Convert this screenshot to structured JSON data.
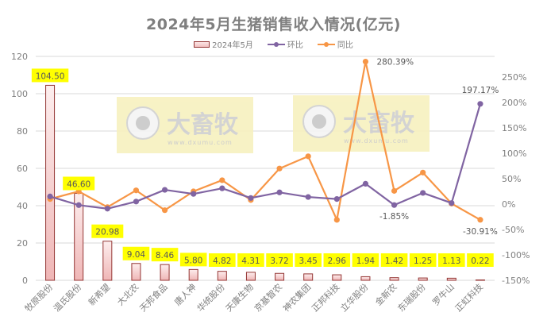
{
  "chart_data": {
    "type": "bar+line",
    "title": "2024年5月生猪销售收入情况(亿元)",
    "categories": [
      "牧原股份",
      "温氏股份",
      "新希望",
      "大北农",
      "天邦食品",
      "唐人神",
      "华统股份",
      "天康生物",
      "京基智农",
      "神农集团",
      "正邦科技",
      "立华股份",
      "金新农",
      "东瑞股份",
      "罗牛山",
      "正虹科技"
    ],
    "series": [
      {
        "name": "2024年5月",
        "type": "bar",
        "axis": "left",
        "values": [
          104.5,
          46.6,
          20.98,
          9.04,
          8.46,
          5.8,
          4.82,
          4.31,
          3.72,
          3.45,
          2.96,
          1.94,
          1.42,
          1.25,
          1.13,
          0.22
        ],
        "labels": [
          "104.50",
          "46.60",
          "20.98",
          "9.04",
          "8.46",
          "5.80",
          "4.82",
          "4.31",
          "3.72",
          "3.45",
          "2.96",
          "1.94",
          "1.42",
          "1.25",
          "1.13",
          "0.22"
        ]
      },
      {
        "name": "环比",
        "type": "line",
        "axis": "right",
        "unit": "%",
        "values": [
          15,
          -2,
          -9,
          5,
          28,
          20,
          31,
          12,
          23,
          14,
          10,
          40,
          -1.85,
          22,
          2,
          197.17
        ],
        "annotations": {
          "12": "-1.85%",
          "15": "197.17%"
        }
      },
      {
        "name": "同比",
        "type": "line",
        "axis": "right",
        "unit": "%",
        "values": [
          10,
          25,
          -6,
          27,
          -12,
          25,
          47,
          8,
          70,
          94,
          -31,
          280.39,
          26,
          62,
          1,
          -30.91
        ],
        "annotations": {
          "11": "280.39%",
          "15": "-30.91%"
        }
      }
    ],
    "left_axis": {
      "min": 0,
      "max": 120,
      "step": 20,
      "ticks": [
        "0",
        "20",
        "40",
        "60",
        "80",
        "100",
        "120"
      ]
    },
    "right_axis": {
      "min": -150,
      "max": 250,
      "step": 50,
      "ticks": [
        "-150%",
        "-100%",
        "-50%",
        "0%",
        "50%",
        "100%",
        "150%",
        "200%",
        "250%"
      ]
    },
    "xlabel": "",
    "ylabel": "",
    "grid": true,
    "legend_position": "top",
    "colors": {
      "bar_fill_top": "#fce8e8",
      "bar_fill_bottom": "#efb8b8",
      "bar_border": "#943634",
      "mom": "#8064a2",
      "yoy": "#f79646",
      "label_bg": "#ffff00",
      "grid": "#d9d9d9",
      "text": "#7f7f7f"
    }
  },
  "legend": [
    {
      "label": "2024年5月"
    },
    {
      "label": "环比"
    },
    {
      "label": "同比"
    }
  ],
  "watermark": {
    "brand": "大畜牧",
    "url": "www.dxumu.com"
  }
}
